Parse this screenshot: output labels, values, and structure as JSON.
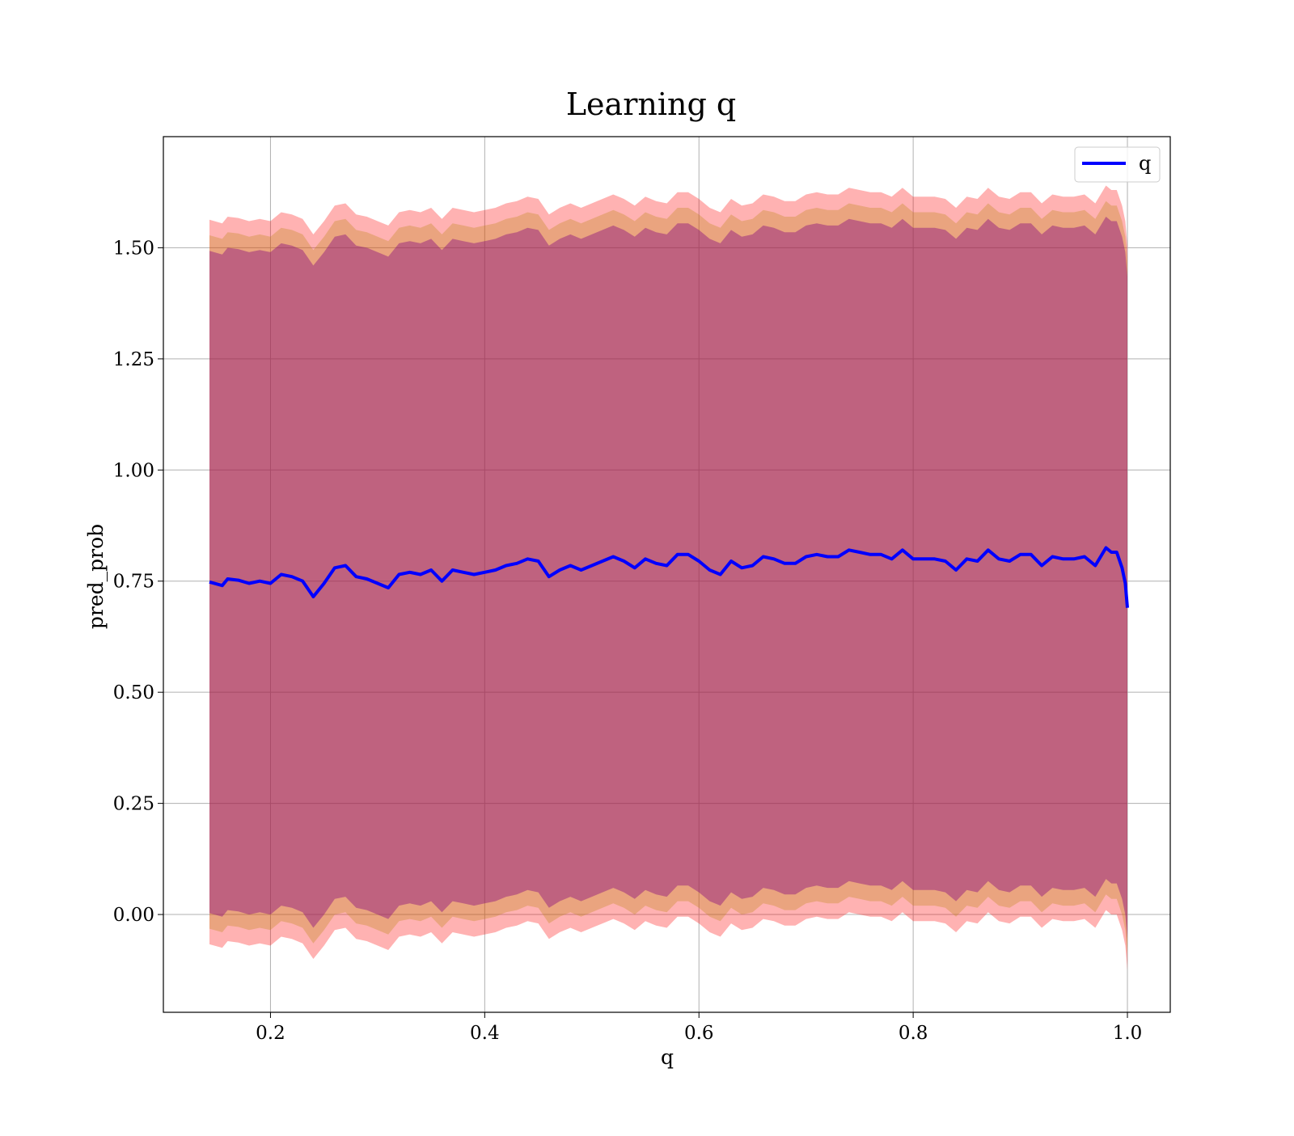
{
  "chart_data": {
    "type": "line",
    "title": "Learning q",
    "xlabel": "q",
    "ylabel": "pred_prob",
    "xlim": [
      0.1,
      1.04
    ],
    "ylim": [
      -0.22,
      1.75
    ],
    "xticks": [
      0.2,
      0.4,
      0.6,
      0.8,
      1.0
    ],
    "xtick_labels": [
      "0.2",
      "0.4",
      "0.6",
      "0.8",
      "1.0"
    ],
    "yticks": [
      0.0,
      0.25,
      0.5,
      0.75,
      1.0,
      1.25,
      1.5
    ],
    "ytick_labels": [
      "0.00",
      "0.25",
      "0.50",
      "0.75",
      "1.00",
      "1.25",
      "1.50"
    ],
    "grid": true,
    "legend": {
      "position": "top-right",
      "entries": [
        "q"
      ]
    },
    "colors": {
      "line": "#0000ff",
      "band_outer": "#ff0000",
      "band_middle": "#b8860b",
      "band_inner": "#800080",
      "grid": "#b0b0b0"
    },
    "band_half_widths": {
      "outer": 0.815,
      "middle": 0.78,
      "inner": 0.745
    },
    "series": [
      {
        "name": "q",
        "x": [
          0.143,
          0.155,
          0.16,
          0.17,
          0.18,
          0.19,
          0.2,
          0.21,
          0.22,
          0.23,
          0.24,
          0.25,
          0.26,
          0.27,
          0.28,
          0.29,
          0.3,
          0.31,
          0.32,
          0.33,
          0.34,
          0.35,
          0.36,
          0.37,
          0.38,
          0.39,
          0.4,
          0.41,
          0.42,
          0.43,
          0.44,
          0.45,
          0.46,
          0.47,
          0.48,
          0.49,
          0.5,
          0.51,
          0.52,
          0.53,
          0.54,
          0.55,
          0.56,
          0.57,
          0.58,
          0.59,
          0.6,
          0.61,
          0.62,
          0.63,
          0.64,
          0.65,
          0.66,
          0.67,
          0.68,
          0.69,
          0.7,
          0.71,
          0.72,
          0.73,
          0.74,
          0.75,
          0.76,
          0.77,
          0.78,
          0.79,
          0.8,
          0.81,
          0.82,
          0.83,
          0.84,
          0.85,
          0.86,
          0.87,
          0.88,
          0.89,
          0.9,
          0.91,
          0.92,
          0.93,
          0.94,
          0.95,
          0.96,
          0.97,
          0.98,
          0.985,
          0.99,
          0.995,
          0.998,
          1.0
        ],
        "y": [
          0.748,
          0.74,
          0.755,
          0.752,
          0.745,
          0.75,
          0.745,
          0.765,
          0.76,
          0.75,
          0.715,
          0.745,
          0.78,
          0.785,
          0.76,
          0.755,
          0.745,
          0.735,
          0.765,
          0.77,
          0.765,
          0.775,
          0.75,
          0.775,
          0.77,
          0.765,
          0.77,
          0.775,
          0.785,
          0.79,
          0.8,
          0.795,
          0.76,
          0.775,
          0.785,
          0.775,
          0.785,
          0.795,
          0.805,
          0.795,
          0.78,
          0.8,
          0.79,
          0.785,
          0.81,
          0.81,
          0.795,
          0.775,
          0.765,
          0.795,
          0.78,
          0.785,
          0.805,
          0.8,
          0.79,
          0.79,
          0.805,
          0.81,
          0.805,
          0.805,
          0.82,
          0.815,
          0.81,
          0.81,
          0.8,
          0.82,
          0.8,
          0.8,
          0.8,
          0.795,
          0.775,
          0.8,
          0.795,
          0.82,
          0.8,
          0.795,
          0.81,
          0.81,
          0.785,
          0.805,
          0.8,
          0.8,
          0.805,
          0.785,
          0.825,
          0.815,
          0.815,
          0.78,
          0.745,
          0.69
        ]
      }
    ]
  }
}
